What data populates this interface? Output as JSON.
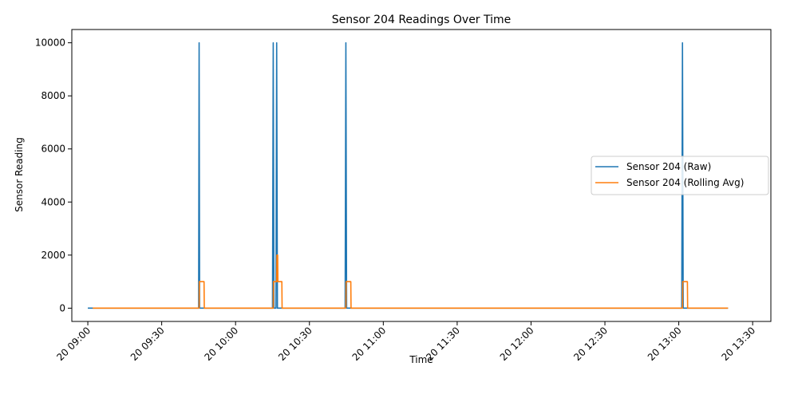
{
  "chart_data": {
    "type": "line",
    "title": "Sensor 204 Readings Over Time",
    "xlabel": "Time",
    "ylabel": "Sensor Reading",
    "x_tick_labels": [
      "20 09:00",
      "20 09:30",
      "20 10:00",
      "20 10:30",
      "20 11:00",
      "20 11:30",
      "20 12:00",
      "20 12:30",
      "20 13:00",
      "20 13:30"
    ],
    "y_tick_labels": [
      "0",
      "2000",
      "4000",
      "6000",
      "8000",
      "10000"
    ],
    "x_ticks_minutes": [
      0,
      30,
      60,
      90,
      120,
      150,
      180,
      210,
      240,
      270
    ],
    "y_ticks": [
      0,
      2000,
      4000,
      6000,
      8000,
      10000
    ],
    "xlim_minutes": [
      -6.5,
      277.4
    ],
    "ylim": [
      -500,
      10500
    ],
    "grid": false,
    "legend_position": "center-right",
    "series": [
      {
        "name": "Sensor 204 (Raw)",
        "color": "#1f77b4",
        "points": [
          [
            0,
            0
          ],
          [
            45,
            0
          ],
          [
            45.2,
            10000
          ],
          [
            45.4,
            0
          ],
          [
            75,
            0
          ],
          [
            75.3,
            10000
          ],
          [
            75.6,
            0
          ],
          [
            76.4,
            0
          ],
          [
            76.7,
            10000
          ],
          [
            77,
            0
          ],
          [
            104.5,
            0
          ],
          [
            104.8,
            10000
          ],
          [
            105.1,
            0
          ],
          [
            241.2,
            0
          ],
          [
            241.5,
            10000
          ],
          [
            241.8,
            0
          ],
          [
            260,
            0
          ]
        ]
      },
      {
        "name": "Sensor 204 (Rolling Avg)",
        "color": "#ff7f0e",
        "points": [
          [
            2,
            0
          ],
          [
            45.2,
            0
          ],
          [
            45.3,
            1000
          ],
          [
            47.2,
            1000
          ],
          [
            47.3,
            0
          ],
          [
            75.3,
            0
          ],
          [
            75.4,
            1000
          ],
          [
            76.7,
            1000
          ],
          [
            76.8,
            2000
          ],
          [
            77.1,
            2000
          ],
          [
            77.2,
            1000
          ],
          [
            78.8,
            1000
          ],
          [
            78.9,
            0
          ],
          [
            104.8,
            0
          ],
          [
            104.9,
            1000
          ],
          [
            106.8,
            1000
          ],
          [
            106.9,
            0
          ],
          [
            241.5,
            0
          ],
          [
            241.6,
            1000
          ],
          [
            243.5,
            1000
          ],
          [
            243.6,
            0
          ],
          [
            260,
            0
          ]
        ]
      }
    ]
  }
}
